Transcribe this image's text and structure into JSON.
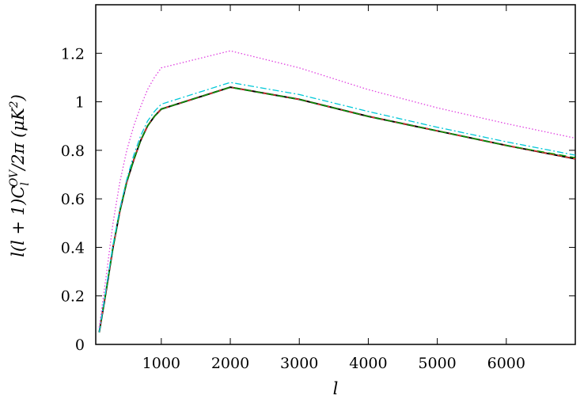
{
  "chart_data": {
    "type": "line",
    "title": "",
    "xlabel": "l",
    "ylabel": "l(l + 1)C_l^{OV}/2π (μK²)",
    "xlim": [
      50,
      7000
    ],
    "ylim": [
      0,
      1.4
    ],
    "x_ticks": [
      1000,
      2000,
      3000,
      4000,
      5000,
      6000
    ],
    "x_tick_labels": [
      "1000",
      "2000",
      "3000",
      "4000",
      "5000",
      "6000"
    ],
    "y_ticks": [
      0,
      0.2,
      0.4,
      0.6,
      0.8,
      1,
      1.2
    ],
    "y_tick_labels": [
      "0",
      "0.2",
      "0.4",
      "0.6",
      "0.8",
      "1",
      "1.2"
    ],
    "grid": false,
    "legend": "none",
    "x": [
      100,
      200,
      300,
      400,
      500,
      600,
      700,
      800,
      900,
      1000,
      2000,
      3000,
      4000,
      5000,
      6000,
      7000
    ],
    "series": [
      {
        "color": "#000000",
        "style": "solid",
        "values": [
          0.05,
          0.22,
          0.4,
          0.55,
          0.67,
          0.76,
          0.84,
          0.9,
          0.94,
          0.97,
          1.06,
          1.01,
          0.94,
          0.88,
          0.82,
          0.765
        ]
      },
      {
        "color": "#ff3030",
        "style": "dashed",
        "values": [
          0.05,
          0.22,
          0.4,
          0.55,
          0.67,
          0.76,
          0.84,
          0.9,
          0.94,
          0.97,
          1.06,
          1.01,
          0.94,
          0.88,
          0.82,
          0.765
        ]
      },
      {
        "color": "#00a000",
        "style": "dash",
        "values": [
          0.05,
          0.22,
          0.4,
          0.55,
          0.67,
          0.76,
          0.84,
          0.9,
          0.94,
          0.97,
          1.06,
          1.01,
          0.94,
          0.88,
          0.82,
          0.77
        ]
      },
      {
        "color": "#00c8d8",
        "style": "dashdot",
        "values": [
          0.05,
          0.23,
          0.41,
          0.56,
          0.68,
          0.78,
          0.86,
          0.92,
          0.96,
          0.99,
          1.08,
          1.03,
          0.96,
          0.895,
          0.835,
          0.78
        ]
      },
      {
        "color": "#e040e0",
        "style": "dotted",
        "values": [
          0.07,
          0.28,
          0.5,
          0.67,
          0.8,
          0.9,
          0.98,
          1.05,
          1.1,
          1.14,
          1.21,
          1.14,
          1.05,
          0.975,
          0.91,
          0.85
        ]
      }
    ]
  }
}
